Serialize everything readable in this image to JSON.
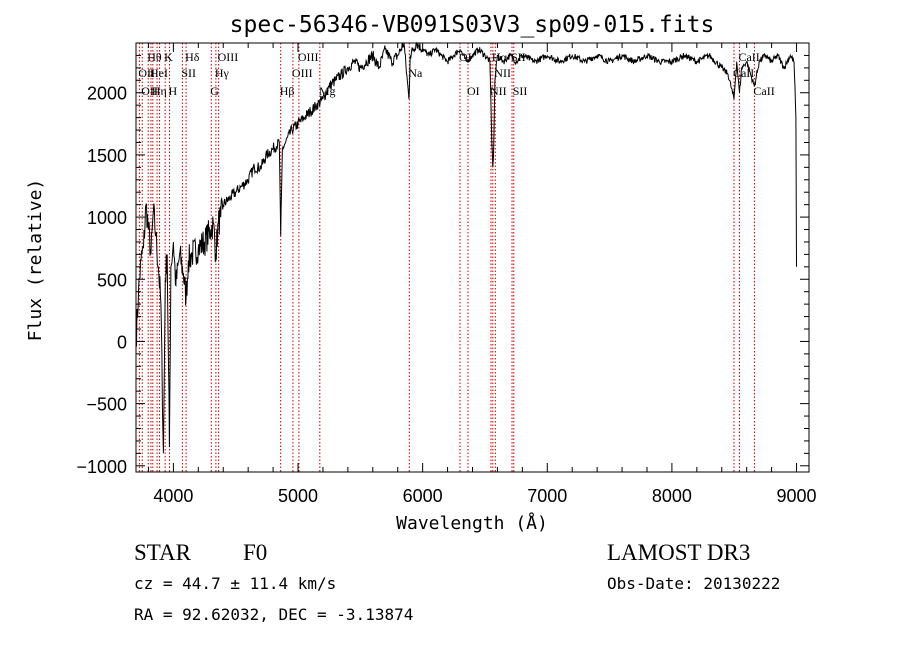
{
  "chart_data": {
    "type": "line",
    "title": "spec-56346-VB091S03V3_sp09-015.fits",
    "xlabel": "Wavelength (Å)",
    "ylabel": "Flux (relative)",
    "xlim": [
      3700,
      9100
    ],
    "ylim": [
      -1050,
      2400
    ],
    "xticks": [
      4000,
      5000,
      6000,
      7000,
      8000,
      9000
    ],
    "yticks": [
      -1000,
      -500,
      0,
      500,
      1000,
      1500,
      2000
    ],
    "spectrum": {
      "x": [
        3700,
        3720,
        3740,
        3760,
        3780,
        3800,
        3820,
        3840,
        3860,
        3880,
        3900,
        3920,
        3935,
        3950,
        3968,
        3980,
        4000,
        4020,
        4050,
        4080,
        4102,
        4120,
        4150,
        4200,
        4250,
        4300,
        4320,
        4340,
        4360,
        4380,
        4400,
        4450,
        4500,
        4550,
        4600,
        4650,
        4700,
        4750,
        4800,
        4850,
        4861,
        4875,
        4900,
        4950,
        5000,
        5050,
        5100,
        5150,
        5200,
        5250,
        5300,
        5350,
        5400,
        5450,
        5500,
        5550,
        5600,
        5650,
        5700,
        5750,
        5800,
        5850,
        5890,
        5900,
        5950,
        6000,
        6050,
        6100,
        6150,
        6200,
        6250,
        6300,
        6350,
        6400,
        6450,
        6500,
        6540,
        6555,
        6563,
        6570,
        6580,
        6600,
        6650,
        6700,
        6750,
        6800,
        6900,
        7000,
        7100,
        7200,
        7300,
        7400,
        7500,
        7600,
        7700,
        7800,
        7900,
        8000,
        8100,
        8200,
        8300,
        8400,
        8450,
        8498,
        8520,
        8542,
        8560,
        8600,
        8662,
        8700,
        8750,
        8800,
        8850,
        8900,
        8950,
        8980,
        8995,
        9000
      ],
      "y": [
        0,
        400,
        650,
        750,
        1100,
        900,
        700,
        1050,
        850,
        600,
        300,
        -900,
        500,
        700,
        -850,
        600,
        800,
        450,
        700,
        550,
        350,
        650,
        700,
        750,
        800,
        900,
        950,
        700,
        950,
        1000,
        1100,
        1150,
        1200,
        1250,
        1300,
        1400,
        1400,
        1500,
        1550,
        1600,
        850,
        1550,
        1600,
        1700,
        1750,
        1800,
        1850,
        1900,
        1950,
        2050,
        2100,
        2150,
        2200,
        2250,
        2200,
        2250,
        2300,
        2200,
        2350,
        2250,
        2300,
        2400,
        1950,
        2300,
        2400,
        2350,
        2300,
        2350,
        2300,
        2250,
        2300,
        2350,
        2250,
        2300,
        2350,
        2300,
        2250,
        1600,
        1400,
        1550,
        2100,
        2300,
        2250,
        2300,
        2250,
        2300,
        2250,
        2300,
        2250,
        2300,
        2250,
        2300,
        2250,
        2300,
        2250,
        2300,
        2250,
        2250,
        2300,
        2250,
        2300,
        2200,
        2150,
        1950,
        2250,
        2000,
        2200,
        2250,
        2050,
        2250,
        2300,
        2250,
        2300,
        2200,
        2300,
        2250,
        1800,
        600
      ]
    },
    "lines": [
      {
        "wave": 3727,
        "label": "OII",
        "row": 2
      },
      {
        "wave": 3750,
        "label": "OII",
        "row": 3
      },
      {
        "wave": 3798,
        "label": "Hθ",
        "row": 1
      },
      {
        "wave": 3820,
        "label": "HeI",
        "row": 2
      },
      {
        "wave": 3835,
        "label": "Hη",
        "row": 3
      },
      {
        "wave": 3869,
        "label": "",
        "row": 0
      },
      {
        "wave": 3889,
        "label": "",
        "row": 0
      },
      {
        "wave": 3934,
        "label": "K",
        "row": 1
      },
      {
        "wave": 3969,
        "label": "H",
        "row": 3
      },
      {
        "wave": 4072,
        "label": "SII",
        "row": 2
      },
      {
        "wave": 4102,
        "label": "Hδ",
        "row": 1
      },
      {
        "wave": 4304,
        "label": "G",
        "row": 3
      },
      {
        "wave": 4341,
        "label": "Hγ",
        "row": 2
      },
      {
        "wave": 4363,
        "label": "OIII",
        "row": 1
      },
      {
        "wave": 4861,
        "label": "Hβ",
        "row": 3
      },
      {
        "wave": 4959,
        "label": "OIII",
        "row": 2
      },
      {
        "wave": 5007,
        "label": "OIII",
        "row": 1
      },
      {
        "wave": 5175,
        "label": "Mg",
        "row": 3
      },
      {
        "wave": 5893,
        "label": "Na",
        "row": 2
      },
      {
        "wave": 6300,
        "label": "OI",
        "row": 1
      },
      {
        "wave": 6364,
        "label": "OI",
        "row": 3
      },
      {
        "wave": 6548,
        "label": "NII",
        "row": 3
      },
      {
        "wave": 6563,
        "label": "Hα",
        "row": 1
      },
      {
        "wave": 6583,
        "label": "NII",
        "row": 2
      },
      {
        "wave": 6717,
        "label": "SII",
        "row": 1
      },
      {
        "wave": 6731,
        "label": "SII",
        "row": 3
      },
      {
        "wave": 8498,
        "label": "CaII",
        "row": 2
      },
      {
        "wave": 8542,
        "label": "CaII",
        "row": 1
      },
      {
        "wave": 8662,
        "label": "CaII",
        "row": 3
      }
    ]
  },
  "info": {
    "class": "STAR",
    "subclass": "F0",
    "survey": "LAMOST DR3",
    "cz": "cz = 44.7 ± 11.4 km/s",
    "obs_date": "Obs-Date: 20130222",
    "coords": "RA =  92.62032, DEC =  -3.13874"
  }
}
